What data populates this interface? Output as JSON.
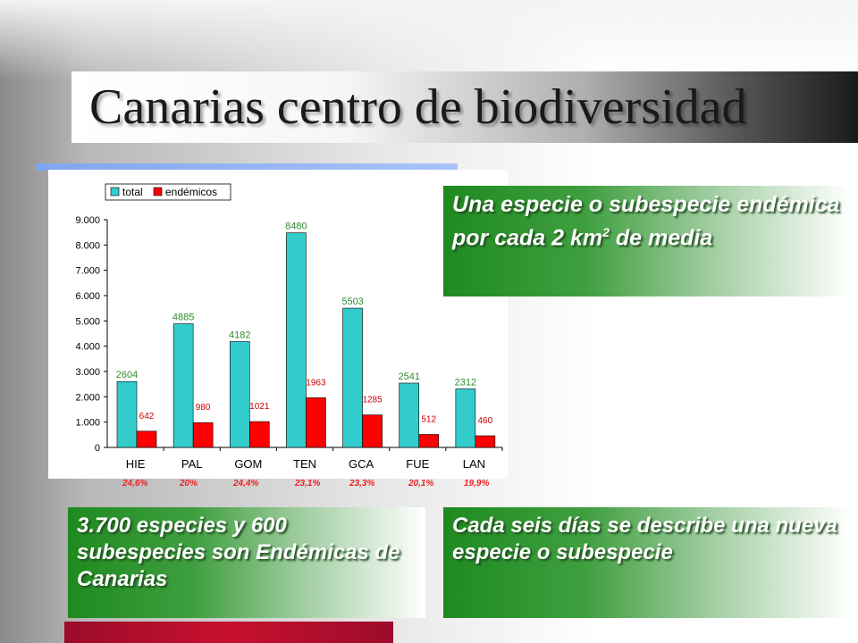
{
  "slide": {
    "title": "Canarias centro de biodiversidad"
  },
  "callouts": {
    "top_right_main": "Una especie o subespecie endémica por cada 2 km",
    "top_right_sup": "2",
    "top_right_end": "de media",
    "bottom_left": "3.700 especies  y 600 subespecies son Endémicas de Canarias",
    "bottom_right": "Cada seis días se describe una nueva especie o subespecie"
  },
  "chart_data": {
    "type": "bar",
    "categories": [
      "HIE",
      "PAL",
      "GOM",
      "TEN",
      "GCA",
      "FUE",
      "LAN"
    ],
    "series": [
      {
        "name": "total",
        "values": [
          2604,
          4885,
          4182,
          8480,
          5503,
          2541,
          2312
        ],
        "color": "#33cccc"
      },
      {
        "name": "endémicos",
        "values": [
          642,
          980,
          1021,
          1963,
          1285,
          512,
          460
        ],
        "color": "#ff0000"
      }
    ],
    "yticks": [
      "0",
      "1.000",
      "2.000",
      "3.000",
      "4.000",
      "5.000",
      "6.000",
      "7.000",
      "8.000",
      "9.000"
    ],
    "ylim": [
      0,
      9000
    ],
    "legend_position": "top-left",
    "percent_labels": [
      "24,6%",
      "20%",
      "24,4%",
      "23,1%",
      "23,3%",
      "20,1%",
      "19,9%"
    ],
    "colors": {
      "total_label": "#2e8b2e",
      "endemic_label": "#cc0000",
      "percent": "#ee2222"
    }
  }
}
